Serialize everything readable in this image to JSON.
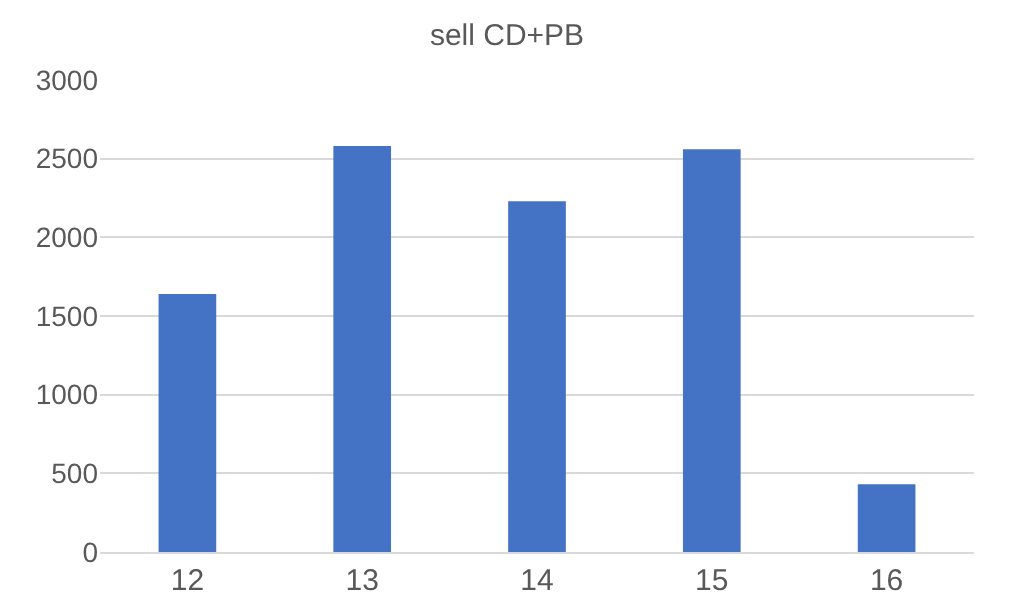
{
  "chart_data": {
    "type": "bar",
    "title": "sell CD+PB",
    "categories": [
      "12",
      "13",
      "14",
      "15",
      "16"
    ],
    "values": [
      1640,
      2580,
      2230,
      2560,
      430
    ],
    "color": "#4472c4",
    "ylim": [
      0,
      3000
    ],
    "yticks": [
      0,
      500,
      1000,
      1500,
      2000,
      2500,
      3000
    ],
    "grid": "y"
  }
}
